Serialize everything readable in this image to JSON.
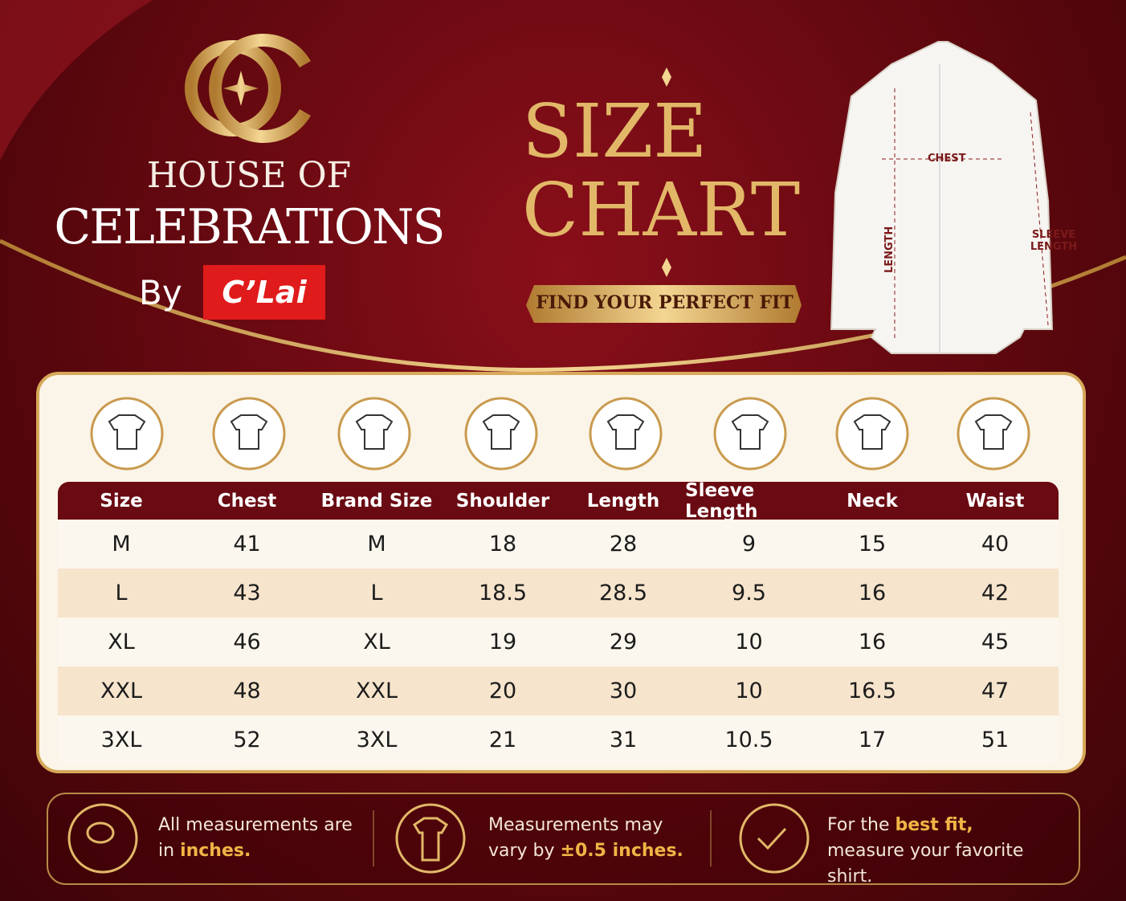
{
  "brand": {
    "line1": "HOUSE OF",
    "line2": "CELEBRATIONS",
    "by": "By",
    "badge": "C’Lai"
  },
  "header": {
    "title1": "SIZE",
    "title2": "CHART",
    "ribbon": "FIND YOUR PERFECT FIT"
  },
  "diagram": {
    "chest": "CHEST",
    "length": "LENGTH",
    "sleeve": "SLEEVE LENGTH"
  },
  "table": {
    "columns": [
      "Size",
      "Chest",
      "Brand Size",
      "Shoulder",
      "Length",
      "Sleeve Length",
      "Neck",
      "Waist"
    ],
    "rows": [
      [
        "M",
        "41",
        "M",
        "18",
        "28",
        "9",
        "15",
        "40"
      ],
      [
        "L",
        "43",
        "L",
        "18.5",
        "28.5",
        "9.5",
        "16",
        "42"
      ],
      [
        "XL",
        "46",
        "XL",
        "19",
        "29",
        "10",
        "16",
        "45"
      ],
      [
        "XXL",
        "48",
        "XXL",
        "20",
        "30",
        "10",
        "16.5",
        "47"
      ],
      [
        "3XL",
        "52",
        "3XL",
        "21",
        "31",
        "10.5",
        "17",
        "51"
      ]
    ]
  },
  "notes": [
    {
      "text": "All measurements are in",
      "highlight": "inches."
    },
    {
      "text": "Measurements may vary by",
      "highlight": "±0.5 inches."
    },
    {
      "before": "For the",
      "highlight": "best fit,",
      "after": "measure your favorite shirt."
    }
  ]
}
